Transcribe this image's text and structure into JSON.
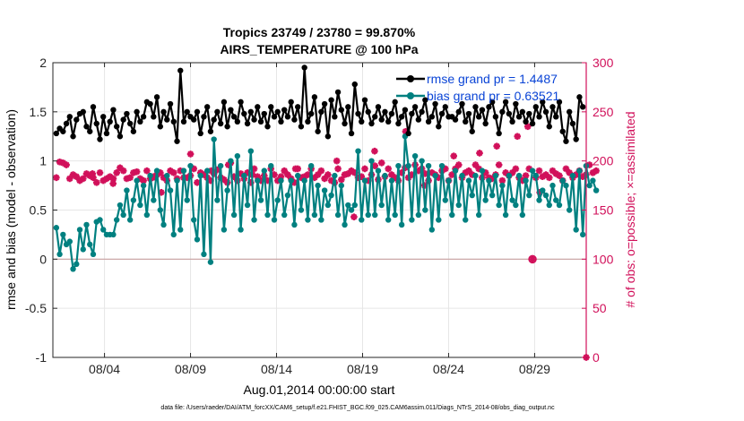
{
  "chart_data": {
    "type": "line",
    "title_line1": "Tropics 23749 / 23780 = 99.870%",
    "title_line2": "AIRS_TEMPERATURE @ 100 hPa",
    "xlabel": "Aug.01,2014 00:00:00 start",
    "ylabel_left": "rmse and bias (model - observation)",
    "ylabel_right": "# of obs: o=possible; ×=assimilated",
    "ylim_left": [
      -1,
      2
    ],
    "ylim_right": [
      0,
      300
    ],
    "xlim": [
      1,
      32
    ],
    "x_ticks": [
      4,
      9,
      14,
      19,
      24,
      29
    ],
    "x_tick_labels": [
      "08/04",
      "08/09",
      "08/14",
      "08/19",
      "08/24",
      "08/29"
    ],
    "y_left_ticks": [
      -1,
      -0.5,
      0,
      0.5,
      1,
      1.5,
      2
    ],
    "y_left_tick_labels": [
      "-1",
      "-0.5",
      "0",
      "0.5",
      "1",
      "1.5",
      "2"
    ],
    "y_right_ticks": [
      0,
      50,
      100,
      150,
      200,
      250,
      300
    ],
    "y_right_tick_labels": [
      "0",
      "50",
      "100",
      "150",
      "200",
      "250",
      "300"
    ],
    "legend": [
      {
        "name": "rmse grand pr = 1.4487",
        "color": "#000000"
      },
      {
        "name": "bias grand pr = 0.63521",
        "color": "#008080"
      }
    ],
    "colors": {
      "rmse": "#000000",
      "bias": "#008080",
      "obs": "#d1105a",
      "zero_line": "#c9a0a0"
    },
    "series": [
      {
        "name": "rmse",
        "values": [
          1.28,
          1.33,
          1.3,
          1.38,
          1.45,
          1.25,
          1.42,
          1.48,
          1.5,
          1.35,
          1.3,
          1.55,
          1.38,
          1.22,
          1.45,
          1.28,
          1.4,
          1.52,
          1.35,
          1.25,
          1.42,
          1.48,
          1.38,
          1.3,
          1.5,
          1.4,
          1.45,
          1.6,
          1.58,
          1.45,
          1.65,
          1.35,
          1.5,
          1.42,
          1.58,
          1.4,
          1.2,
          1.92,
          1.4,
          1.5,
          1.45,
          1.42,
          1.5,
          1.28,
          1.45,
          1.55,
          1.3,
          1.42,
          1.5,
          1.38,
          1.6,
          1.35,
          1.52,
          1.45,
          1.4,
          1.6,
          1.48,
          1.38,
          1.5,
          1.42,
          1.55,
          1.4,
          1.48,
          1.35,
          1.55,
          1.45,
          1.5,
          1.4,
          1.52,
          1.45,
          1.6,
          1.42,
          1.55,
          1.35,
          1.95,
          1.4,
          1.48,
          1.65,
          1.3,
          1.5,
          1.58,
          1.25,
          1.62,
          1.45,
          1.7,
          1.52,
          1.38,
          1.55,
          1.28,
          1.78,
          1.48,
          1.4,
          1.62,
          1.5,
          1.38,
          1.45,
          1.55,
          1.42,
          1.5,
          1.4,
          1.48,
          1.6,
          1.38,
          1.45,
          1.52,
          1.28,
          1.48,
          1.55,
          1.42,
          1.5,
          1.62,
          1.4,
          1.45,
          1.58,
          1.35,
          1.48,
          1.55,
          1.45,
          1.45,
          1.42,
          1.5,
          1.58,
          1.4,
          1.48,
          1.3,
          1.55,
          1.45,
          1.52,
          1.38,
          1.55,
          1.6,
          1.45,
          1.28,
          1.5,
          1.6,
          1.48,
          1.4,
          1.58,
          1.45,
          1.5,
          1.4,
          1.48,
          1.38,
          1.55,
          1.45,
          1.6,
          1.5,
          1.35,
          1.55,
          1.45,
          1.6,
          1.3,
          1.2,
          1.5,
          1.38,
          1.22,
          1.65,
          1.55
        ]
      },
      {
        "name": "bias",
        "values": [
          0.32,
          0.05,
          0.25,
          0.15,
          0.18,
          -0.1,
          -0.05,
          0.3,
          0.1,
          0.35,
          0.15,
          0.05,
          0.38,
          0.4,
          0.3,
          0.25,
          0.25,
          0.25,
          0.4,
          0.55,
          0.45,
          0.7,
          0.4,
          0.6,
          0.8,
          0.55,
          0.75,
          0.45,
          0.85,
          0.6,
          0.9,
          0.5,
          0.35,
          0.85,
          0.7,
          0.25,
          0.8,
          0.3,
          0.9,
          0.6,
          0.95,
          0.4,
          0.2,
          0.85,
          0.05,
          0.9,
          -0.03,
          1.22,
          0.6,
          0.95,
          0.3,
          0.7,
          1.0,
          0.45,
          1.05,
          0.3,
          0.85,
          0.55,
          1.1,
          0.4,
          0.8,
          0.6,
          0.9,
          0.45,
          0.95,
          0.4,
          0.6,
          0.8,
          0.45,
          0.65,
          0.8,
          0.35,
          0.85,
          0.5,
          0.8,
          0.4,
          0.95,
          0.45,
          0.75,
          0.4,
          0.7,
          0.55,
          0.65,
          0.85,
          0.45,
          0.75,
          0.35,
          0.55,
          0.5,
          0.55,
          1.1,
          0.4,
          0.8,
          0.45,
          1.0,
          0.45,
          0.9,
          0.55,
          0.85,
          0.4,
          0.8,
          0.45,
          0.95,
          0.35,
          1.25,
          0.95,
          0.4,
          1.05,
          0.45,
          1.0,
          0.5,
          0.95,
          0.3,
          0.85,
          0.4,
          0.95,
          0.6,
          0.8,
          0.45,
          0.9,
          0.55,
          0.85,
          0.4,
          0.8,
          0.65,
          0.85,
          0.45,
          0.9,
          0.6,
          0.8,
          0.65,
          0.85,
          0.55,
          0.75,
          0.45,
          0.85,
          0.6,
          0.55,
          0.85,
          0.45,
          0.8,
          0.65,
          0.9,
          0.85,
          0.6,
          0.7,
          0.65,
          0.55,
          0.75,
          0.6,
          0.55,
          0.8,
          0.75,
          0.5,
          0.85,
          0.3,
          0.9,
          0.25,
          0.95,
          0.75,
          0.8,
          0.7
        ]
      },
      {
        "name": "obs_assimilated",
        "values": [
          183,
          199,
          198,
          196,
          182,
          186,
          184,
          180,
          182,
          187,
          185,
          183,
          178,
          188,
          180,
          182,
          184,
          182,
          188,
          193,
          190,
          182,
          183,
          188,
          189,
          182,
          180,
          190,
          182,
          184,
          186,
          188,
          183,
          180,
          190,
          188,
          182,
          190,
          183,
          183,
          185,
          192,
          178,
          188,
          186,
          183,
          180,
          187,
          191,
          183,
          181,
          178,
          198,
          184,
          180,
          187,
          182,
          188,
          178,
          192,
          184,
          180,
          185,
          180,
          192,
          186,
          180,
          184,
          190,
          186,
          182,
          178,
          192,
          183,
          184,
          186,
          192,
          183,
          186,
          190,
          182,
          186,
          180,
          178,
          192,
          181,
          186,
          187,
          190,
          188,
          183,
          184,
          192,
          180,
          186,
          195,
          181,
          198,
          184,
          192,
          186,
          183,
          180,
          188,
          193,
          183,
          186,
          196,
          190,
          192,
          187,
          180,
          188,
          186,
          183,
          190,
          192,
          180,
          186,
          192,
          196,
          183,
          188,
          190,
          186,
          196,
          192,
          183,
          188,
          183,
          182,
          186,
          196,
          180,
          188,
          185,
          188,
          192,
          183,
          180,
          185,
          192,
          100,
          183,
          190,
          184,
          186,
          183,
          190,
          187,
          185,
          180,
          192,
          188,
          183,
          186,
          190,
          184,
          186,
          196,
          188,
          190
        ]
      },
      {
        "name": "obs_possible",
        "values": [
          183,
          199,
          198,
          196,
          182,
          186,
          184,
          180,
          182,
          187,
          185,
          183,
          178,
          188,
          180,
          182,
          184,
          182,
          188,
          193,
          190,
          182,
          183,
          188,
          189,
          182,
          180,
          190,
          182,
          184,
          186,
          188,
          183,
          180,
          190,
          188,
          182,
          190,
          183,
          183,
          185,
          192,
          178,
          188,
          186,
          183,
          180,
          187,
          191,
          183,
          181,
          178,
          198,
          184,
          180,
          187,
          182,
          188,
          178,
          192,
          184,
          180,
          185,
          180,
          192,
          186,
          180,
          184,
          190,
          186,
          182,
          178,
          192,
          183,
          184,
          186,
          192,
          183,
          186,
          190,
          182,
          186,
          180,
          178,
          192,
          181,
          186,
          187,
          190,
          188,
          183,
          184,
          192,
          180,
          186,
          195,
          181,
          198,
          184,
          192,
          186,
          183,
          180,
          188,
          193,
          183,
          186,
          196,
          190,
          192,
          187,
          180,
          188,
          186,
          183,
          190,
          192,
          180,
          186,
          192,
          196,
          183,
          188,
          190,
          186,
          196,
          192,
          183,
          188,
          183,
          182,
          186,
          196,
          180,
          188,
          185,
          188,
          192,
          183,
          180,
          185,
          192,
          100,
          183,
          190,
          184,
          186,
          183,
          190,
          187,
          185,
          180,
          192,
          188,
          183,
          186,
          190,
          184,
          186,
          196,
          188,
          190
        ]
      }
    ],
    "extra_obs_points": [
      {
        "x": 3.3,
        "y": 187
      },
      {
        "x": 4.5,
        "y": 177
      },
      {
        "x": 6.8,
        "y": 183
      },
      {
        "x": 10.2,
        "y": 190
      },
      {
        "x": 12.6,
        "y": 186
      },
      {
        "x": 15.1,
        "y": 192
      },
      {
        "x": 17.5,
        "y": 200
      },
      {
        "x": 18.5,
        "y": 143
      },
      {
        "x": 19.7,
        "y": 210
      },
      {
        "x": 21.5,
        "y": 230
      },
      {
        "x": 22.6,
        "y": 175
      },
      {
        "x": 25.8,
        "y": 208
      },
      {
        "x": 28.0,
        "y": 225
      },
      {
        "x": 28.6,
        "y": 235
      },
      {
        "x": 29.3,
        "y": 168
      },
      {
        "x": 7.3,
        "y": 168
      },
      {
        "x": 9.0,
        "y": 207
      },
      {
        "x": 11.2,
        "y": 196
      },
      {
        "x": 24.3,
        "y": 205
      },
      {
        "x": 26.8,
        "y": 215
      }
    ]
  },
  "footer": "data file: /Users/raeder/DAI/ATM_forcXX/CAM6_setup/f.e21.FHIST_BGC.f09_025.CAM6assim.011/Diags_NTrS_2014-08/obs_diag_output.nc"
}
